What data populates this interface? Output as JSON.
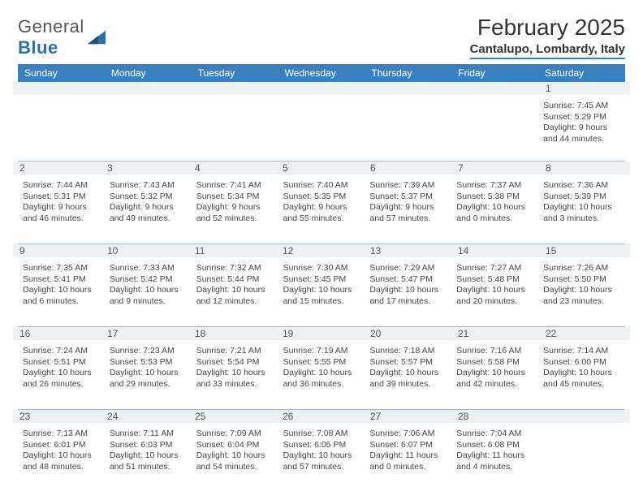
{
  "logo": {
    "text1": "General",
    "text2": "Blue"
  },
  "title": "February 2025",
  "location": "Cantalupo, Lombardy, Italy",
  "columns": [
    "Sunday",
    "Monday",
    "Tuesday",
    "Wednesday",
    "Thursday",
    "Friday",
    "Saturday"
  ],
  "colors": {
    "header_bg": "#3b7fbf",
    "rule": "#9fb8cf",
    "daynum_bg": "#eef1f3"
  },
  "weeks": [
    [
      {
        "n": "",
        "rise": "",
        "set": "",
        "dl": ""
      },
      {
        "n": "",
        "rise": "",
        "set": "",
        "dl": ""
      },
      {
        "n": "",
        "rise": "",
        "set": "",
        "dl": ""
      },
      {
        "n": "",
        "rise": "",
        "set": "",
        "dl": ""
      },
      {
        "n": "",
        "rise": "",
        "set": "",
        "dl": ""
      },
      {
        "n": "",
        "rise": "",
        "set": "",
        "dl": ""
      },
      {
        "n": "1",
        "rise": "Sunrise: 7:45 AM",
        "set": "Sunset: 5:29 PM",
        "dl": "Daylight: 9 hours and 44 minutes."
      }
    ],
    [
      {
        "n": "2",
        "rise": "Sunrise: 7:44 AM",
        "set": "Sunset: 5:31 PM",
        "dl": "Daylight: 9 hours and 46 minutes."
      },
      {
        "n": "3",
        "rise": "Sunrise: 7:43 AM",
        "set": "Sunset: 5:32 PM",
        "dl": "Daylight: 9 hours and 49 minutes."
      },
      {
        "n": "4",
        "rise": "Sunrise: 7:41 AM",
        "set": "Sunset: 5:34 PM",
        "dl": "Daylight: 9 hours and 52 minutes."
      },
      {
        "n": "5",
        "rise": "Sunrise: 7:40 AM",
        "set": "Sunset: 5:35 PM",
        "dl": "Daylight: 9 hours and 55 minutes."
      },
      {
        "n": "6",
        "rise": "Sunrise: 7:39 AM",
        "set": "Sunset: 5:37 PM",
        "dl": "Daylight: 9 hours and 57 minutes."
      },
      {
        "n": "7",
        "rise": "Sunrise: 7:37 AM",
        "set": "Sunset: 5:38 PM",
        "dl": "Daylight: 10 hours and 0 minutes."
      },
      {
        "n": "8",
        "rise": "Sunrise: 7:36 AM",
        "set": "Sunset: 5:39 PM",
        "dl": "Daylight: 10 hours and 3 minutes."
      }
    ],
    [
      {
        "n": "9",
        "rise": "Sunrise: 7:35 AM",
        "set": "Sunset: 5:41 PM",
        "dl": "Daylight: 10 hours and 6 minutes."
      },
      {
        "n": "10",
        "rise": "Sunrise: 7:33 AM",
        "set": "Sunset: 5:42 PM",
        "dl": "Daylight: 10 hours and 9 minutes."
      },
      {
        "n": "11",
        "rise": "Sunrise: 7:32 AM",
        "set": "Sunset: 5:44 PM",
        "dl": "Daylight: 10 hours and 12 minutes."
      },
      {
        "n": "12",
        "rise": "Sunrise: 7:30 AM",
        "set": "Sunset: 5:45 PM",
        "dl": "Daylight: 10 hours and 15 minutes."
      },
      {
        "n": "13",
        "rise": "Sunrise: 7:29 AM",
        "set": "Sunset: 5:47 PM",
        "dl": "Daylight: 10 hours and 17 minutes."
      },
      {
        "n": "14",
        "rise": "Sunrise: 7:27 AM",
        "set": "Sunset: 5:48 PM",
        "dl": "Daylight: 10 hours and 20 minutes."
      },
      {
        "n": "15",
        "rise": "Sunrise: 7:26 AM",
        "set": "Sunset: 5:50 PM",
        "dl": "Daylight: 10 hours and 23 minutes."
      }
    ],
    [
      {
        "n": "16",
        "rise": "Sunrise: 7:24 AM",
        "set": "Sunset: 5:51 PM",
        "dl": "Daylight: 10 hours and 26 minutes."
      },
      {
        "n": "17",
        "rise": "Sunrise: 7:23 AM",
        "set": "Sunset: 5:53 PM",
        "dl": "Daylight: 10 hours and 29 minutes."
      },
      {
        "n": "18",
        "rise": "Sunrise: 7:21 AM",
        "set": "Sunset: 5:54 PM",
        "dl": "Daylight: 10 hours and 33 minutes."
      },
      {
        "n": "19",
        "rise": "Sunrise: 7:19 AM",
        "set": "Sunset: 5:55 PM",
        "dl": "Daylight: 10 hours and 36 minutes."
      },
      {
        "n": "20",
        "rise": "Sunrise: 7:18 AM",
        "set": "Sunset: 5:57 PM",
        "dl": "Daylight: 10 hours and 39 minutes."
      },
      {
        "n": "21",
        "rise": "Sunrise: 7:16 AM",
        "set": "Sunset: 5:58 PM",
        "dl": "Daylight: 10 hours and 42 minutes."
      },
      {
        "n": "22",
        "rise": "Sunrise: 7:14 AM",
        "set": "Sunset: 6:00 PM",
        "dl": "Daylight: 10 hours and 45 minutes."
      }
    ],
    [
      {
        "n": "23",
        "rise": "Sunrise: 7:13 AM",
        "set": "Sunset: 6:01 PM",
        "dl": "Daylight: 10 hours and 48 minutes."
      },
      {
        "n": "24",
        "rise": "Sunrise: 7:11 AM",
        "set": "Sunset: 6:03 PM",
        "dl": "Daylight: 10 hours and 51 minutes."
      },
      {
        "n": "25",
        "rise": "Sunrise: 7:09 AM",
        "set": "Sunset: 6:04 PM",
        "dl": "Daylight: 10 hours and 54 minutes."
      },
      {
        "n": "26",
        "rise": "Sunrise: 7:08 AM",
        "set": "Sunset: 6:05 PM",
        "dl": "Daylight: 10 hours and 57 minutes."
      },
      {
        "n": "27",
        "rise": "Sunrise: 7:06 AM",
        "set": "Sunset: 6:07 PM",
        "dl": "Daylight: 11 hours and 0 minutes."
      },
      {
        "n": "28",
        "rise": "Sunrise: 7:04 AM",
        "set": "Sunset: 6:08 PM",
        "dl": "Daylight: 11 hours and 4 minutes."
      },
      {
        "n": "",
        "rise": "",
        "set": "",
        "dl": ""
      }
    ]
  ]
}
